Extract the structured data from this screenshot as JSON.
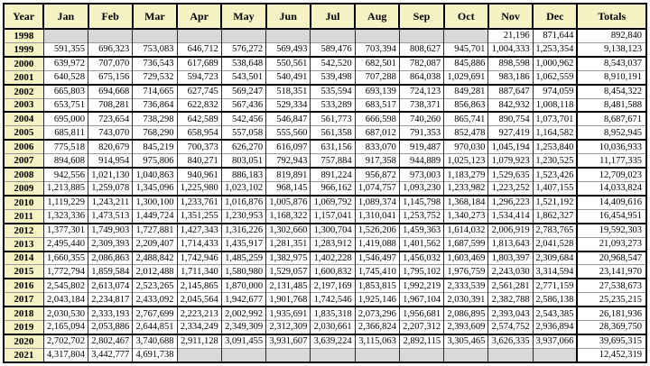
{
  "colors": {
    "header_bg": "#f5f3c4",
    "empty_cell_bg": "#d9d9d9",
    "border": "#000000",
    "row_separator": "#9a9a9a",
    "text": "#000000"
  },
  "chart_data": {
    "type": "table",
    "columns": [
      "Year",
      "Jan",
      "Feb",
      "Mar",
      "Apr",
      "May",
      "Jun",
      "Jul",
      "Aug",
      "Sep",
      "Oct",
      "Nov",
      "Dec",
      "Totals"
    ],
    "rows": [
      {
        "year": "1998",
        "months": [
          null,
          null,
          null,
          null,
          null,
          null,
          null,
          null,
          null,
          null,
          "21,196",
          "871,644"
        ],
        "total": "892,840"
      },
      {
        "year": "1999",
        "months": [
          "591,355",
          "696,323",
          "753,083",
          "646,712",
          "576,272",
          "569,493",
          "589,476",
          "703,394",
          "808,627",
          "945,701",
          "1,004,333",
          "1,253,354"
        ],
        "total": "9,138,123"
      },
      {
        "year": "2000",
        "months": [
          "639,972",
          "707,070",
          "736,543",
          "617,689",
          "538,648",
          "550,561",
          "542,520",
          "682,501",
          "782,087",
          "845,886",
          "898,598",
          "1,000,962"
        ],
        "total": "8,543,037"
      },
      {
        "year": "2001",
        "months": [
          "640,528",
          "675,156",
          "729,532",
          "594,723",
          "543,501",
          "540,491",
          "539,498",
          "707,288",
          "864,038",
          "1,029,691",
          "983,186",
          "1,062,559"
        ],
        "total": "8,910,191"
      },
      {
        "year": "2002",
        "months": [
          "665,803",
          "694,668",
          "714,665",
          "627,745",
          "569,247",
          "518,351",
          "535,594",
          "693,139",
          "724,123",
          "849,281",
          "887,647",
          "974,059"
        ],
        "total": "8,454,322"
      },
      {
        "year": "2003",
        "months": [
          "653,751",
          "708,281",
          "736,864",
          "622,832",
          "567,436",
          "529,334",
          "533,289",
          "683,517",
          "738,371",
          "856,863",
          "842,932",
          "1,008,118"
        ],
        "total": "8,481,588"
      },
      {
        "year": "2004",
        "months": [
          "695,000",
          "723,654",
          "738,298",
          "642,589",
          "542,456",
          "546,847",
          "561,773",
          "666,598",
          "740,260",
          "865,741",
          "890,754",
          "1,073,701"
        ],
        "total": "8,687,671"
      },
      {
        "year": "2005",
        "months": [
          "685,811",
          "743,070",
          "768,290",
          "658,954",
          "557,058",
          "555,560",
          "561,358",
          "687,012",
          "791,353",
          "852,478",
          "927,419",
          "1,164,582"
        ],
        "total": "8,952,945"
      },
      {
        "year": "2006",
        "months": [
          "775,518",
          "820,679",
          "845,219",
          "700,373",
          "626,270",
          "616,097",
          "631,156",
          "833,070",
          "919,487",
          "970,030",
          "1,045,194",
          "1,253,840"
        ],
        "total": "10,036,933"
      },
      {
        "year": "2007",
        "months": [
          "894,608",
          "914,954",
          "975,806",
          "840,271",
          "803,051",
          "792,943",
          "757,884",
          "917,358",
          "944,889",
          "1,025,123",
          "1,079,923",
          "1,230,525"
        ],
        "total": "11,177,335"
      },
      {
        "year": "2008",
        "months": [
          "942,556",
          "1,021,130",
          "1,040,863",
          "940,961",
          "886,183",
          "819,891",
          "891,224",
          "956,872",
          "973,003",
          "1,183,279",
          "1,529,635",
          "1,523,426"
        ],
        "total": "12,709,023"
      },
      {
        "year": "2009",
        "months": [
          "1,213,885",
          "1,259,078",
          "1,345,096",
          "1,225,980",
          "1,023,102",
          "968,145",
          "966,162",
          "1,074,757",
          "1,093,230",
          "1,233,982",
          "1,223,252",
          "1,407,155"
        ],
        "total": "14,033,824"
      },
      {
        "year": "2010",
        "months": [
          "1,119,229",
          "1,243,211",
          "1,300,100",
          "1,233,761",
          "1,016,876",
          "1,005,876",
          "1,069,792",
          "1,089,374",
          "1,145,798",
          "1,368,184",
          "1,296,223",
          "1,521,192"
        ],
        "total": "14,409,616"
      },
      {
        "year": "2011",
        "months": [
          "1,323,336",
          "1,473,513",
          "1,449,724",
          "1,351,255",
          "1,230,953",
          "1,168,322",
          "1,157,041",
          "1,310,041",
          "1,253,752",
          "1,340,273",
          "1,534,414",
          "1,862,327"
        ],
        "total": "16,454,951"
      },
      {
        "year": "2012",
        "months": [
          "1,377,301",
          "1,749,903",
          "1,727,881",
          "1,427,343",
          "1,316,226",
          "1,302,660",
          "1,300,704",
          "1,526,206",
          "1,459,363",
          "1,614,032",
          "2,006,919",
          "2,783,765"
        ],
        "total": "19,592,303"
      },
      {
        "year": "2013",
        "months": [
          "2,495,440",
          "2,309,393",
          "2,209,407",
          "1,714,433",
          "1,435,917",
          "1,281,351",
          "1,283,912",
          "1,419,088",
          "1,401,562",
          "1,687,599",
          "1,813,643",
          "2,041,528"
        ],
        "total": "21,093,273"
      },
      {
        "year": "2014",
        "months": [
          "1,660,355",
          "2,086,863",
          "2,488,842",
          "1,742,946",
          "1,485,259",
          "1,382,975",
          "1,402,228",
          "1,546,497",
          "1,456,032",
          "1,603,469",
          "1,803,397",
          "2,309,684"
        ],
        "total": "20,968,547"
      },
      {
        "year": "2015",
        "months": [
          "1,772,794",
          "1,859,584",
          "2,012,488",
          "1,711,340",
          "1,580,980",
          "1,529,057",
          "1,600,832",
          "1,745,410",
          "1,795,102",
          "1,976,759",
          "2,243,030",
          "3,314,594"
        ],
        "total": "23,141,970"
      },
      {
        "year": "2016",
        "months": [
          "2,545,802",
          "2,613,074",
          "2,523,265",
          "2,145,865",
          "1,870,000",
          "2,131,485",
          "2,197,169",
          "1,853,815",
          "1,992,219",
          "2,333,539",
          "2,561,281",
          "2,771,159"
        ],
        "total": "27,538,673"
      },
      {
        "year": "2017",
        "months": [
          "2,043,184",
          "2,234,817",
          "2,433,092",
          "2,045,564",
          "1,942,677",
          "1,901,768",
          "1,742,546",
          "1,925,146",
          "1,967,104",
          "2,030,391",
          "2,382,788",
          "2,586,138"
        ],
        "total": "25,235,215"
      },
      {
        "year": "2018",
        "months": [
          "2,030,530",
          "2,333,193",
          "2,767,699",
          "2,223,213",
          "2,002,992",
          "1,935,691",
          "1,835,318",
          "2,073,296",
          "1,956,681",
          "2,086,895",
          "2,393,043",
          "2,543,385"
        ],
        "total": "26,181,936"
      },
      {
        "year": "2019",
        "months": [
          "2,165,094",
          "2,053,886",
          "2,644,851",
          "2,334,249",
          "2,349,309",
          "2,312,309",
          "2,030,661",
          "2,366,824",
          "2,207,312",
          "2,393,609",
          "2,574,752",
          "2,936,894"
        ],
        "total": "28,369,750"
      },
      {
        "year": "2020",
        "months": [
          "2,702,702",
          "2,802,467",
          "3,740,688",
          "2,911,128",
          "3,091,455",
          "3,931,607",
          "3,639,224",
          "3,115,063",
          "2,892,115",
          "3,305,465",
          "3,626,335",
          "3,937,066"
        ],
        "total": "39,695,315"
      },
      {
        "year": "2021",
        "months": [
          "4,317,804",
          "3,442,777",
          "4,691,738",
          null,
          null,
          null,
          null,
          null,
          null,
          null,
          null,
          null
        ],
        "total": "12,452,319"
      }
    ]
  }
}
